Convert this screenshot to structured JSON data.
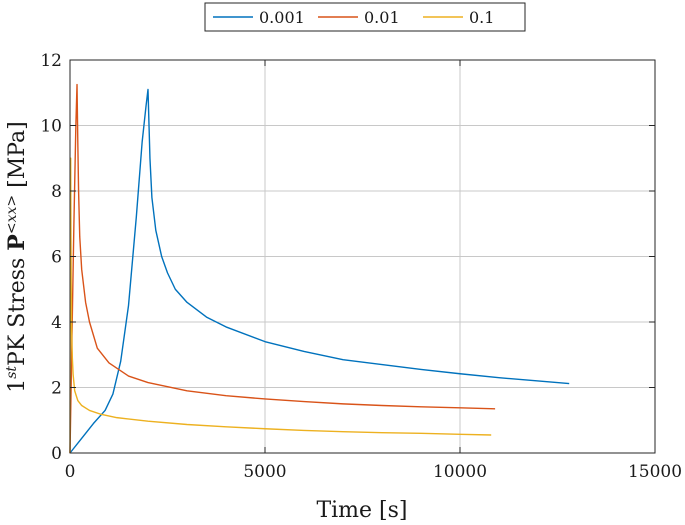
{
  "chart_data": {
    "type": "line",
    "xlabel": "Time [s]",
    "ylabel": {
      "prefix": "1",
      "superscript": "st",
      "text": "PK Stress ",
      "symbol": "P",
      "symbol_superscript": "<xx>",
      "unit": " [MPa]"
    },
    "xlim": [
      0,
      15000
    ],
    "ylim": [
      0,
      12
    ],
    "xticks": [
      0,
      5000,
      10000,
      15000
    ],
    "yticks": [
      0,
      2,
      4,
      6,
      8,
      10,
      12
    ],
    "grid": true,
    "legend_position": "top-center",
    "series": [
      {
        "name": "0.001",
        "color": "#0072BD",
        "x": [
          0,
          300,
          600,
          900,
          1100,
          1300,
          1500,
          1700,
          1850,
          1950,
          2000,
          2050,
          2100,
          2200,
          2350,
          2500,
          2700,
          3000,
          3500,
          4000,
          5000,
          6000,
          7000,
          8000,
          9000,
          10000,
          11000,
          12000,
          12800
        ],
        "y": [
          0,
          0.45,
          0.9,
          1.3,
          1.8,
          2.8,
          4.5,
          7.2,
          9.5,
          10.6,
          11.1,
          9.0,
          7.8,
          6.8,
          6.0,
          5.5,
          5.0,
          4.6,
          4.15,
          3.85,
          3.4,
          3.1,
          2.85,
          2.7,
          2.55,
          2.42,
          2.3,
          2.2,
          2.12
        ]
      },
      {
        "name": "0.01",
        "color": "#D95319",
        "x": [
          0,
          50,
          100,
          150,
          180,
          200,
          220,
          250,
          300,
          400,
          500,
          700,
          1000,
          1500,
          2000,
          3000,
          4000,
          5000,
          6000,
          7000,
          8000,
          9000,
          10000,
          10900
        ],
        "y": [
          0,
          3.5,
          7.0,
          10.0,
          11.25,
          9.5,
          8.0,
          6.6,
          5.6,
          4.6,
          4.0,
          3.2,
          2.75,
          2.35,
          2.15,
          1.9,
          1.75,
          1.65,
          1.57,
          1.5,
          1.45,
          1.41,
          1.38,
          1.35
        ]
      },
      {
        "name": "0.1",
        "color": "#EDB120",
        "x": [
          0,
          5,
          10,
          15,
          18,
          20,
          25,
          30,
          40,
          60,
          80,
          120,
          200,
          300,
          500,
          800,
          1200,
          2000,
          3000,
          4000,
          5000,
          6000,
          7000,
          8000,
          9000,
          10000,
          10800
        ],
        "y": [
          0,
          3.0,
          6.0,
          8.5,
          9.0,
          8.0,
          6.5,
          5.2,
          3.9,
          2.9,
          2.4,
          1.9,
          1.6,
          1.45,
          1.3,
          1.18,
          1.08,
          0.97,
          0.87,
          0.8,
          0.74,
          0.69,
          0.65,
          0.62,
          0.6,
          0.57,
          0.55
        ]
      }
    ]
  }
}
